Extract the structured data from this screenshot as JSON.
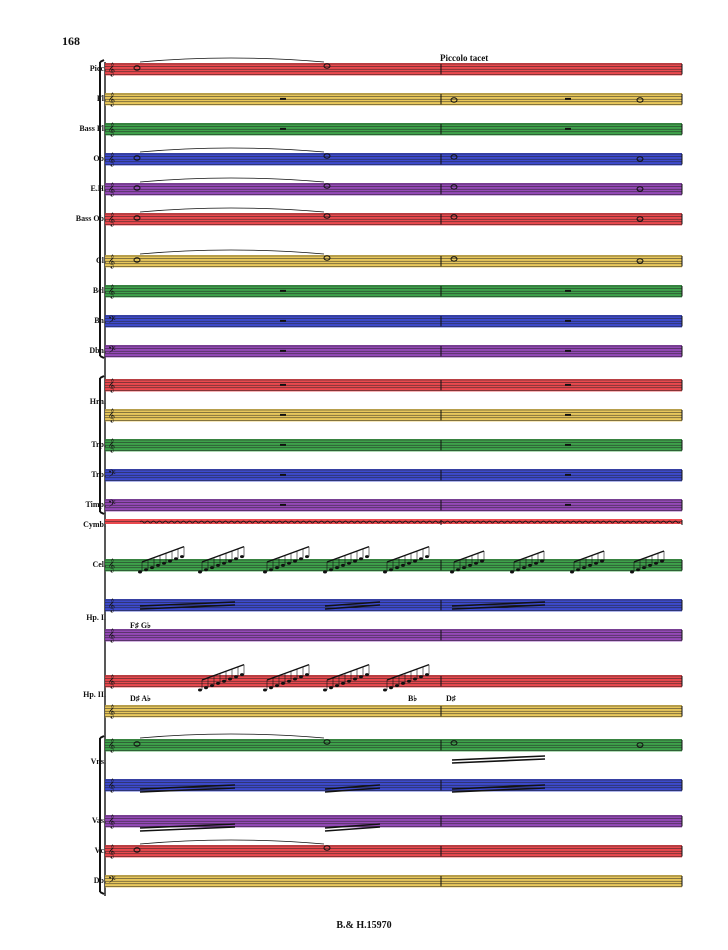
{
  "page_number": "168",
  "marking": "Piccolo tacet",
  "footer": "B.& H.15970",
  "colors": {
    "red": "#e8393f",
    "yellow": "#e6c24d",
    "green": "#2e9a3c",
    "blue": "#2c3bc9",
    "purple": "#8b39b1"
  },
  "instruments": [
    {
      "label": "Picc.",
      "color": "red"
    },
    {
      "label": "Fl.",
      "color": "yellow"
    },
    {
      "label": "Bass Fl.",
      "color": "green"
    },
    {
      "label": "Ob.",
      "color": "blue"
    },
    {
      "label": "E.H.",
      "color": "purple"
    },
    {
      "label": "Bass Ob.",
      "color": "red"
    },
    {
      "label": "Cl.",
      "color": "yellow"
    },
    {
      "label": "Bcl.",
      "color": "green"
    },
    {
      "label": "Bn.",
      "color": "blue"
    },
    {
      "label": "Dbn.",
      "color": "purple"
    },
    {
      "label": "Hrn.",
      "color": "red"
    },
    {
      "label": "",
      "color": "yellow"
    },
    {
      "label": "Trp.",
      "color": "green"
    },
    {
      "label": "Trb.",
      "color": "blue"
    },
    {
      "label": "Timp.",
      "color": "purple"
    },
    {
      "label": "Cymb.",
      "color": "red"
    },
    {
      "label": "Cel.",
      "color": "green"
    },
    {
      "label": "Hp. I.",
      "color": "blue"
    },
    {
      "label": "",
      "color": "purple"
    },
    {
      "label": "Hp. II.",
      "color": "red"
    },
    {
      "label": "",
      "color": "yellow"
    },
    {
      "label": "Vns.",
      "color": "green"
    },
    {
      "label": "",
      "color": "blue"
    },
    {
      "label": "Vas.",
      "color": "purple"
    },
    {
      "label": "Vc.",
      "color": "red"
    },
    {
      "label": "Db.",
      "color": "yellow"
    }
  ],
  "pedal_marks": [
    {
      "text": "F♯ G♭"
    },
    {
      "text": "D♯ A♭"
    },
    {
      "text": "B♭"
    },
    {
      "text": "D♯"
    }
  ]
}
